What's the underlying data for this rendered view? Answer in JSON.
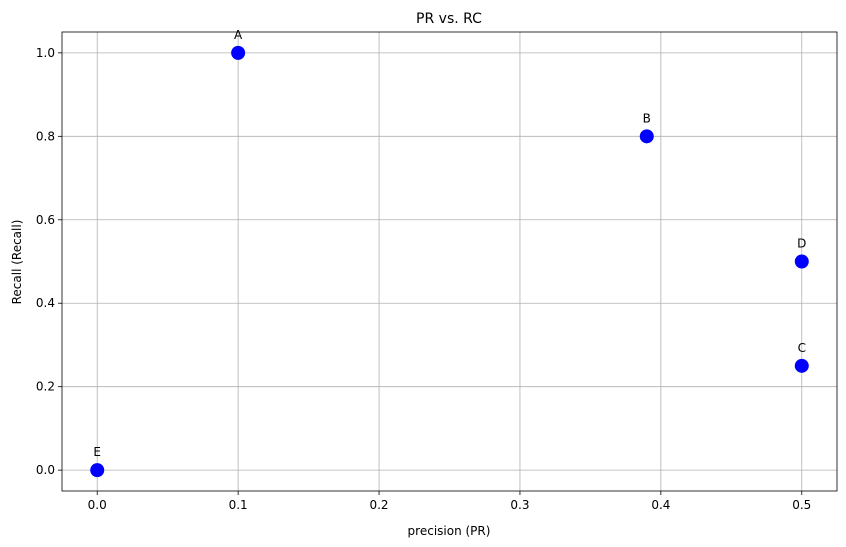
{
  "chart_data": {
    "type": "scatter",
    "title": "PR vs. RC",
    "xlabel": "precision (PR)",
    "ylabel": "Recall (Recall)",
    "xlim": [
      -0.025,
      0.525
    ],
    "ylim": [
      -0.05,
      1.05
    ],
    "xticks": [
      0.0,
      0.1,
      0.2,
      0.3,
      0.4,
      0.5
    ],
    "xtick_labels": [
      "0.0",
      "0.1",
      "0.2",
      "0.3",
      "0.4",
      "0.5"
    ],
    "yticks": [
      0.0,
      0.2,
      0.4,
      0.6,
      0.8,
      1.0
    ],
    "ytick_labels": [
      "0.0",
      "0.2",
      "0.4",
      "0.6",
      "0.8",
      "1.0"
    ],
    "grid": true,
    "marker_color": "#0000ff",
    "points": [
      {
        "label": "A",
        "x": 0.1,
        "y": 1.0
      },
      {
        "label": "B",
        "x": 0.39,
        "y": 0.8
      },
      {
        "label": "C",
        "x": 0.5,
        "y": 0.25
      },
      {
        "label": "D",
        "x": 0.5,
        "y": 0.5
      },
      {
        "label": "E",
        "x": 0.0,
        "y": 0.0
      }
    ]
  }
}
